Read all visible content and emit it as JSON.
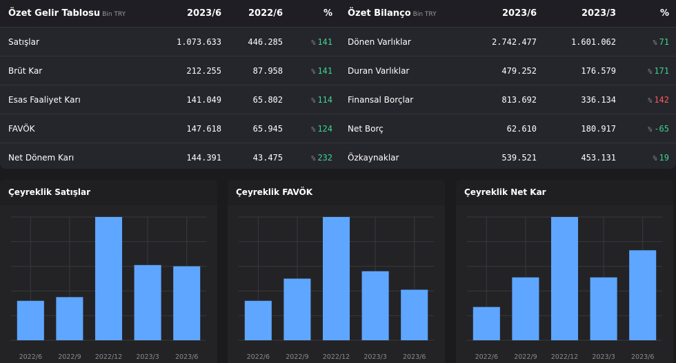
{
  "income": {
    "title": "Özet Gelir Tablosu",
    "unit": "Bin TRY",
    "col1": "2023/6",
    "col2": "2022/6",
    "col3": "%",
    "pct_sign": "%",
    "rows": [
      {
        "label": "Satışlar",
        "v1": "1.073.633",
        "v2": "446.285",
        "pct": "141",
        "sign": "pos"
      },
      {
        "label": "Brüt Kar",
        "v1": "212.255",
        "v2": "87.958",
        "pct": "141",
        "sign": "pos"
      },
      {
        "label": "Esas Faaliyet Karı",
        "v1": "141.049",
        "v2": "65.802",
        "pct": "114",
        "sign": "pos"
      },
      {
        "label": "FAVÖK",
        "v1": "147.618",
        "v2": "65.945",
        "pct": "124",
        "sign": "pos"
      },
      {
        "label": "Net Dönem Karı",
        "v1": "144.391",
        "v2": "43.475",
        "pct": "232",
        "sign": "pos"
      }
    ]
  },
  "balance": {
    "title": "Özet Bilanço",
    "unit": "Bin TRY",
    "col1": "2023/6",
    "col2": "2023/3",
    "col3": "%",
    "pct_sign": "%",
    "rows": [
      {
        "label": "Dönen Varlıklar",
        "v1": "2.742.477",
        "v2": "1.601.062",
        "pct": "71",
        "sign": "pos"
      },
      {
        "label": "Duran Varlıklar",
        "v1": "479.252",
        "v2": "176.579",
        "pct": "171",
        "sign": "pos"
      },
      {
        "label": "Finansal Borçlar",
        "v1": "813.692",
        "v2": "336.134",
        "pct": "142",
        "sign": "neg"
      },
      {
        "label": "Net Borç",
        "v1": "62.610",
        "v2": "180.917",
        "pct": "-65",
        "sign": "pos"
      },
      {
        "label": "Özkaynaklar",
        "v1": "539.521",
        "v2": "453.131",
        "pct": "19",
        "sign": "pos"
      }
    ]
  },
  "colors": {
    "bar": "#5ea6ff",
    "grid": "#3a3a3e",
    "positive": "#3dd68c",
    "negative": "#ff5a5a"
  },
  "chart_data": [
    {
      "type": "bar",
      "title": "Çeyreklik Satışlar",
      "categories": [
        "2022/6",
        "2022/9",
        "2022/12",
        "2023/3",
        "2023/6"
      ],
      "values": [
        32,
        35,
        100,
        61,
        60
      ],
      "ylim": [
        0,
        100
      ],
      "grid": true
    },
    {
      "type": "bar",
      "title": "Çeyreklik FAVÖK",
      "categories": [
        "2022/6",
        "2022/9",
        "2022/12",
        "2023/3",
        "2023/6"
      ],
      "values": [
        32,
        50,
        100,
        56,
        41
      ],
      "ylim": [
        0,
        100
      ],
      "grid": true
    },
    {
      "type": "bar",
      "title": "Çeyreklik Net Kar",
      "categories": [
        "2022/6",
        "2022/9",
        "2022/12",
        "2023/3",
        "2023/6"
      ],
      "values": [
        27,
        51,
        100,
        51,
        73
      ],
      "ylim": [
        0,
        100
      ],
      "grid": true
    }
  ]
}
